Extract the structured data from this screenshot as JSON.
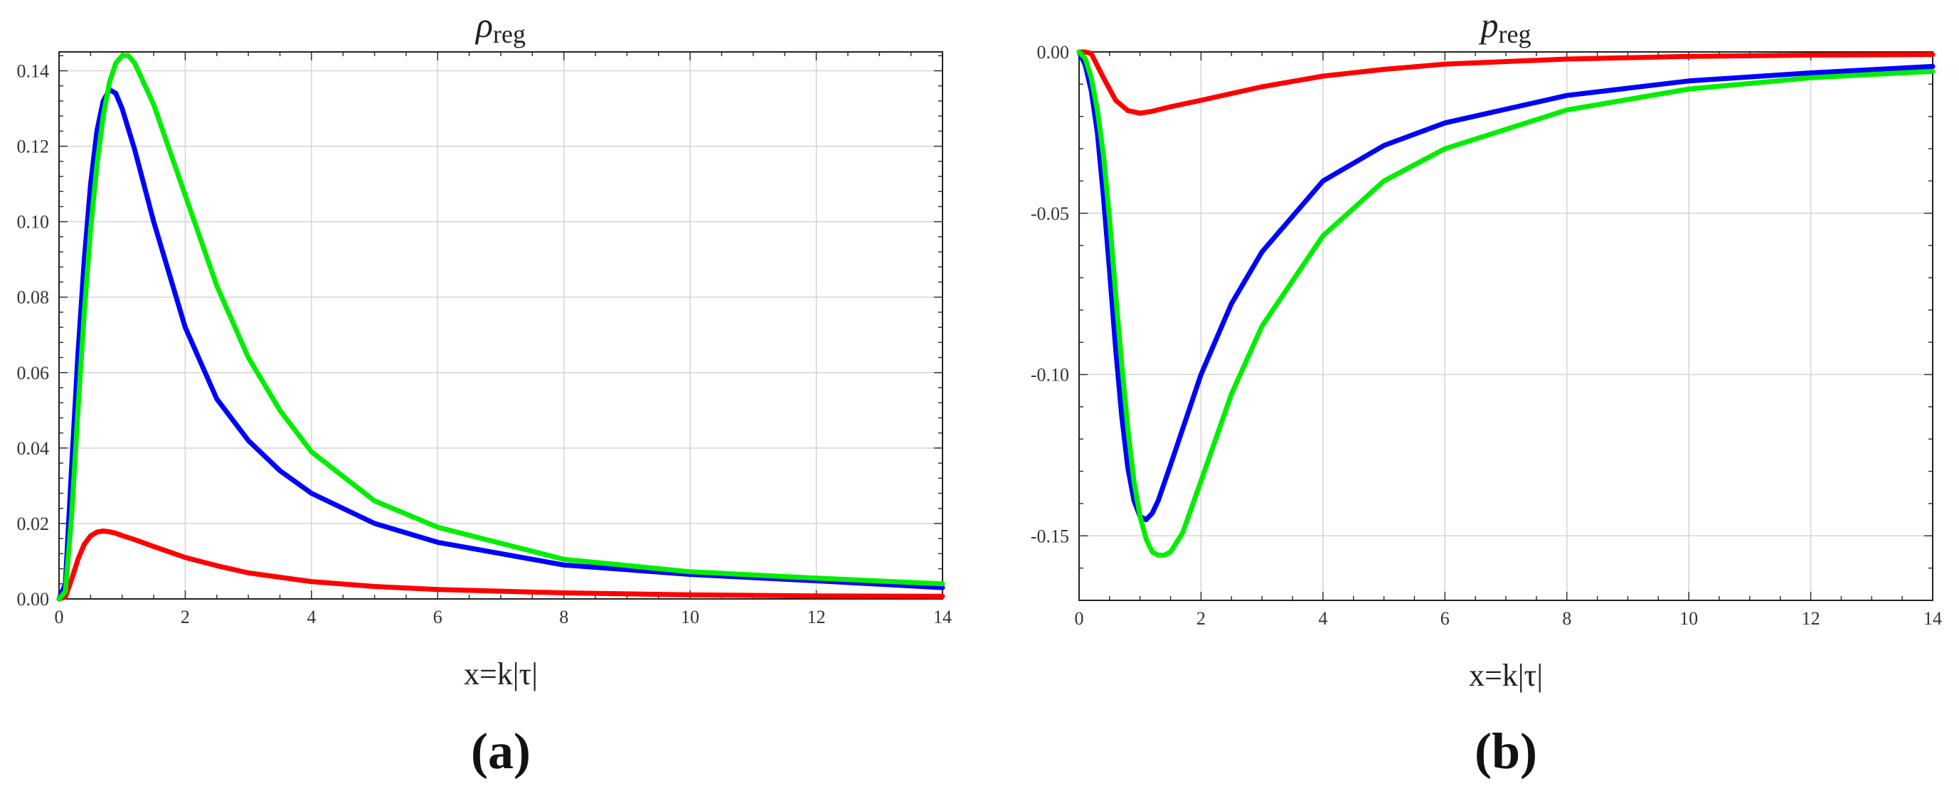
{
  "chart_data": [
    {
      "type": "line",
      "title": "ρ",
      "title_sub": "reg",
      "xlabel": "x=k|τ|",
      "ylabel": "",
      "panel_label": "(a)",
      "xlim": [
        0,
        14
      ],
      "ylim": [
        0,
        0.145
      ],
      "xticks": [
        "0",
        "2",
        "4",
        "6",
        "8",
        "10",
        "12",
        "14"
      ],
      "yticks": [
        "0.00",
        "0.02",
        "0.04",
        "0.06",
        "0.08",
        "0.10",
        "0.12",
        "0.14"
      ],
      "grid": true,
      "series": [
        {
          "color": "#ff0000",
          "x": [
            0,
            0.1,
            0.2,
            0.3,
            0.4,
            0.5,
            0.6,
            0.7,
            0.8,
            0.9,
            1.0,
            1.2,
            1.5,
            2,
            2.5,
            3,
            4,
            5,
            6,
            8,
            10,
            12,
            14
          ],
          "y": [
            0,
            0.0005,
            0.0052,
            0.0105,
            0.0145,
            0.0167,
            0.0177,
            0.018,
            0.0178,
            0.0174,
            0.0168,
            0.0157,
            0.0139,
            0.011,
            0.0088,
            0.0069,
            0.0046,
            0.0033,
            0.0025,
            0.0016,
            0.0011,
            0.0008,
            0.0007
          ]
        },
        {
          "color": "#0000ff",
          "x": [
            0,
            0.1,
            0.2,
            0.3,
            0.4,
            0.5,
            0.6,
            0.7,
            0.8,
            0.9,
            1.0,
            1.2,
            1.5,
            2,
            2.5,
            3,
            3.5,
            4,
            5,
            6,
            8,
            10,
            12,
            14
          ],
          "y": [
            0,
            0.004,
            0.035,
            0.065,
            0.09,
            0.11,
            0.124,
            0.132,
            0.135,
            0.134,
            0.13,
            0.119,
            0.1,
            0.072,
            0.053,
            0.042,
            0.034,
            0.028,
            0.02,
            0.015,
            0.009,
            0.0065,
            0.0048,
            0.003
          ]
        },
        {
          "color": "#00ee00",
          "x": [
            0,
            0.1,
            0.2,
            0.3,
            0.4,
            0.5,
            0.6,
            0.7,
            0.8,
            0.9,
            1.0,
            1.1,
            1.2,
            1.5,
            2,
            2.5,
            3,
            3.5,
            4,
            5,
            6,
            8,
            10,
            12,
            14
          ],
          "y": [
            0,
            0.002,
            0.022,
            0.05,
            0.076,
            0.098,
            0.115,
            0.128,
            0.137,
            0.142,
            0.144,
            0.144,
            0.142,
            0.131,
            0.107,
            0.083,
            0.064,
            0.05,
            0.039,
            0.026,
            0.019,
            0.0105,
            0.0072,
            0.0055,
            0.004
          ]
        }
      ]
    },
    {
      "type": "line",
      "title": "p",
      "title_sub": "reg",
      "xlabel": "x=k|τ|",
      "ylabel": "",
      "panel_label": "(b)",
      "xlim": [
        0,
        14
      ],
      "ylim": [
        -0.17,
        0
      ],
      "xticks": [
        "0",
        "2",
        "4",
        "6",
        "8",
        "10",
        "12",
        "14"
      ],
      "yticks": [
        "0.00",
        "-0.05",
        "-0.10",
        "-0.15"
      ],
      "grid": true,
      "series": [
        {
          "color": "#ff0000",
          "x": [
            0,
            0.1,
            0.2,
            0.4,
            0.6,
            0.8,
            1.0,
            1.2,
            1.5,
            2,
            3,
            4,
            5,
            6,
            8,
            10,
            12,
            14
          ],
          "y": [
            0,
            0,
            -0.0005,
            -0.008,
            -0.015,
            -0.0182,
            -0.019,
            -0.0184,
            -0.017,
            -0.015,
            -0.0108,
            -0.0075,
            -0.0054,
            -0.0038,
            -0.0022,
            -0.0014,
            -0.001,
            -0.0008
          ]
        },
        {
          "color": "#0000ff",
          "x": [
            0,
            0.1,
            0.2,
            0.3,
            0.4,
            0.5,
            0.6,
            0.7,
            0.8,
            0.9,
            1.0,
            1.1,
            1.2,
            1.3,
            1.5,
            2,
            2.5,
            3,
            4,
            5,
            6,
            8,
            10,
            12,
            14
          ],
          "y": [
            0,
            -0.004,
            -0.012,
            -0.025,
            -0.045,
            -0.068,
            -0.092,
            -0.113,
            -0.129,
            -0.139,
            -0.144,
            -0.145,
            -0.143,
            -0.139,
            -0.128,
            -0.1,
            -0.078,
            -0.062,
            -0.04,
            -0.029,
            -0.022,
            -0.0135,
            -0.009,
            -0.0065,
            -0.0045
          ]
        },
        {
          "color": "#00ee00",
          "x": [
            0,
            0.1,
            0.2,
            0.3,
            0.4,
            0.5,
            0.6,
            0.7,
            0.8,
            0.9,
            1.0,
            1.1,
            1.2,
            1.3,
            1.4,
            1.5,
            1.7,
            2,
            2.5,
            3,
            4,
            5,
            6,
            8,
            10,
            12,
            14
          ],
          "y": [
            0,
            -0.002,
            -0.008,
            -0.018,
            -0.032,
            -0.052,
            -0.075,
            -0.097,
            -0.117,
            -0.133,
            -0.144,
            -0.151,
            -0.155,
            -0.156,
            -0.156,
            -0.155,
            -0.149,
            -0.133,
            -0.106,
            -0.085,
            -0.057,
            -0.04,
            -0.03,
            -0.018,
            -0.0115,
            -0.008,
            -0.006
          ]
        }
      ]
    }
  ]
}
